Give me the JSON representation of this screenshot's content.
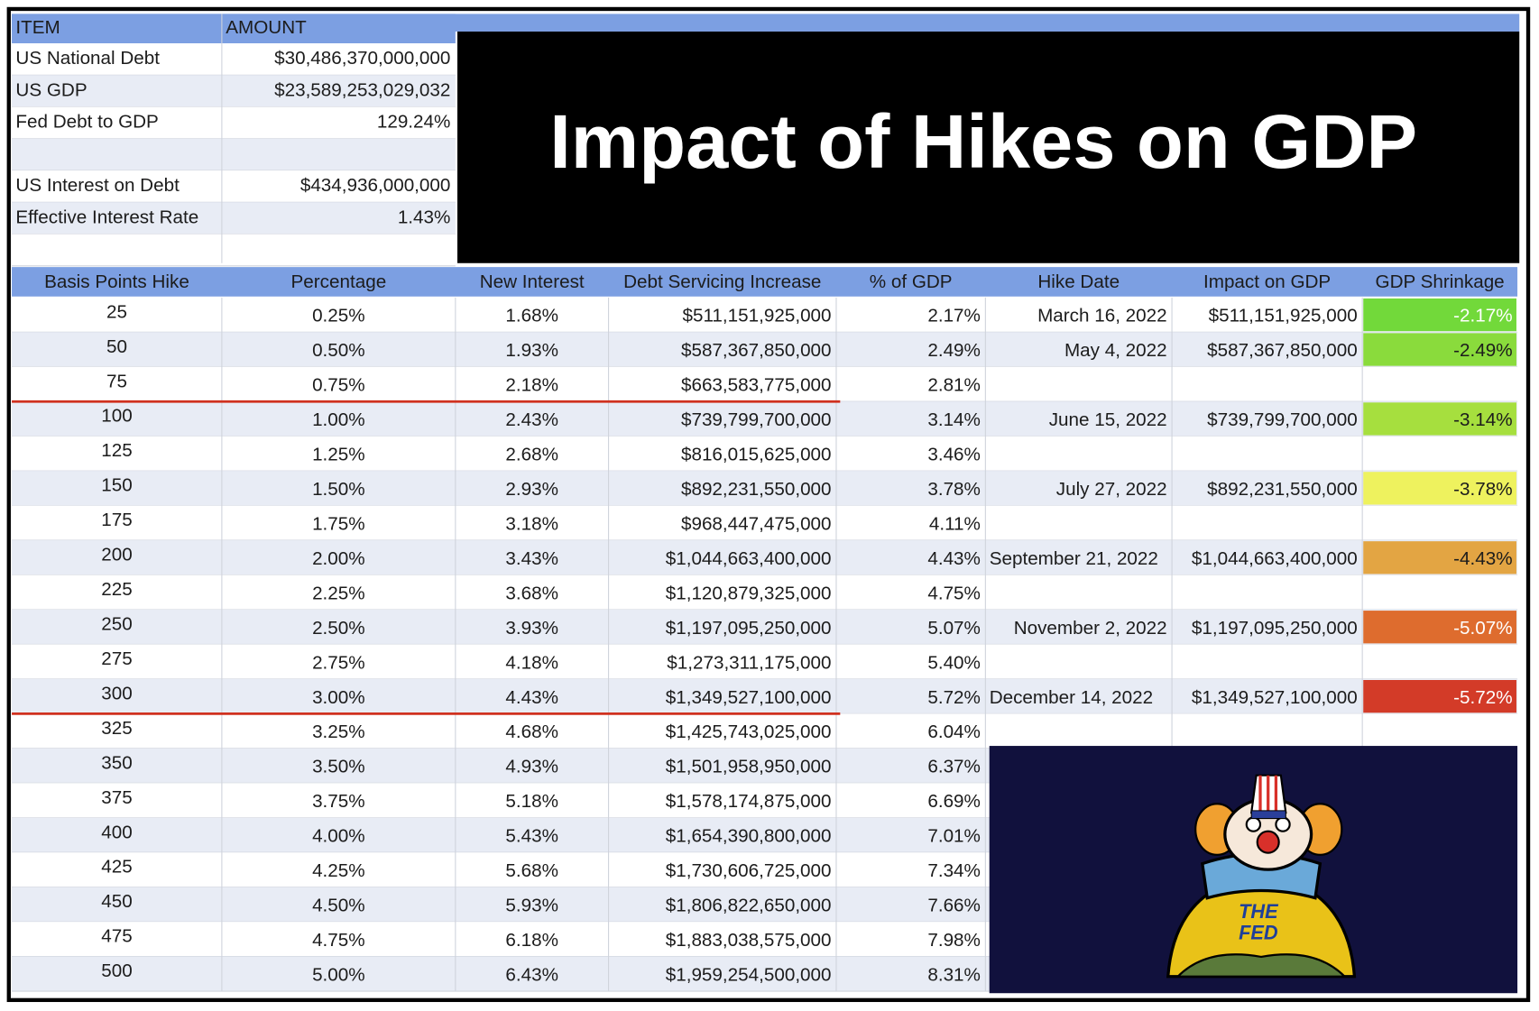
{
  "summary": {
    "headers": [
      "ITEM",
      "AMOUNT"
    ],
    "rows": [
      [
        "US National Debt",
        "$30,486,370,000,000"
      ],
      [
        "US GDP",
        "$23,589,253,029,032"
      ],
      [
        "Fed Debt to GDP",
        "129.24%"
      ],
      [
        "US Interest on Debt",
        "$434,936,000,000"
      ],
      [
        "Effective Interest Rate",
        "1.43%"
      ]
    ]
  },
  "title": "Impact of Hikes on GDP",
  "table": {
    "headers": [
      "Basis Points Hike",
      "Percentage",
      "New Interest",
      "Debt Servicing Increase",
      "% of GDP",
      "Hike Date",
      "Impact on GDP",
      "GDP Shrinkage"
    ],
    "rows": [
      [
        "25",
        "0.25%",
        "1.68%",
        "$511,151,925,000",
        "2.17%",
        "March 16, 2022",
        "$511,151,925,000",
        "-2.17%"
      ],
      [
        "50",
        "0.50%",
        "1.93%",
        "$587,367,850,000",
        "2.49%",
        "May 4, 2022",
        "$587,367,850,000",
        "-2.49%"
      ],
      [
        "75",
        "0.75%",
        "2.18%",
        "$663,583,775,000",
        "2.81%",
        null,
        null,
        null
      ],
      [
        "100",
        "1.00%",
        "2.43%",
        "$739,799,700,000",
        "3.14%",
        "June 15, 2022",
        "$739,799,700,000",
        "-3.14%"
      ],
      [
        "125",
        "1.25%",
        "2.68%",
        "$816,015,625,000",
        "3.46%",
        null,
        null,
        null
      ],
      [
        "150",
        "1.50%",
        "2.93%",
        "$892,231,550,000",
        "3.78%",
        "July 27, 2022",
        "$892,231,550,000",
        "-3.78%"
      ],
      [
        "175",
        "1.75%",
        "3.18%",
        "$968,447,475,000",
        "4.11%",
        null,
        null,
        null
      ],
      [
        "200",
        "2.00%",
        "3.43%",
        "$1,044,663,400,000",
        "4.43%",
        "September 21, 2022",
        "$1,044,663,400,000",
        "-4.43%"
      ],
      [
        "225",
        "2.25%",
        "3.68%",
        "$1,120,879,325,000",
        "4.75%",
        null,
        null,
        null
      ],
      [
        "250",
        "2.50%",
        "3.93%",
        "$1,197,095,250,000",
        "5.07%",
        "November 2, 2022",
        "$1,197,095,250,000",
        "-5.07%"
      ],
      [
        "275",
        "2.75%",
        "4.18%",
        "$1,273,311,175,000",
        "5.40%",
        null,
        null,
        null
      ],
      [
        "300",
        "3.00%",
        "4.43%",
        "$1,349,527,100,000",
        "5.72%",
        "December 14, 2022",
        "$1,349,527,100,000",
        "-5.72%"
      ],
      [
        "325",
        "3.25%",
        "4.68%",
        "$1,425,743,025,000",
        "6.04%",
        null,
        null,
        null
      ],
      [
        "350",
        "3.50%",
        "4.93%",
        "$1,501,958,950,000",
        "6.37%",
        null,
        null,
        null
      ],
      [
        "375",
        "3.75%",
        "5.18%",
        "$1,578,174,875,000",
        "6.69%",
        null,
        null,
        null
      ],
      [
        "400",
        "4.00%",
        "5.43%",
        "$1,654,390,800,000",
        "7.01%",
        null,
        null,
        null
      ],
      [
        "425",
        "4.25%",
        "5.68%",
        "$1,730,606,725,000",
        "7.34%",
        null,
        null,
        null
      ],
      [
        "450",
        "4.50%",
        "5.93%",
        "$1,806,822,650,000",
        "7.66%",
        null,
        null,
        null
      ],
      [
        "475",
        "4.75%",
        "6.18%",
        "$1,883,038,575,000",
        "7.98%",
        null,
        null,
        null
      ],
      [
        "500",
        "5.00%",
        "6.43%",
        "$1,959,254,500,000",
        "8.31%",
        null,
        null,
        null
      ]
    ],
    "shrinkage_colors": [
      "#72d93a",
      "#8adb3c",
      null,
      "#a6df3e",
      null,
      "#eef25e",
      null,
      "#e3a543",
      null,
      "#de6c2e",
      null,
      "#d33b28",
      null,
      null,
      null,
      null,
      null,
      null,
      null,
      null
    ]
  },
  "badge": {
    "lines": [
      "THE",
      "FED"
    ]
  }
}
